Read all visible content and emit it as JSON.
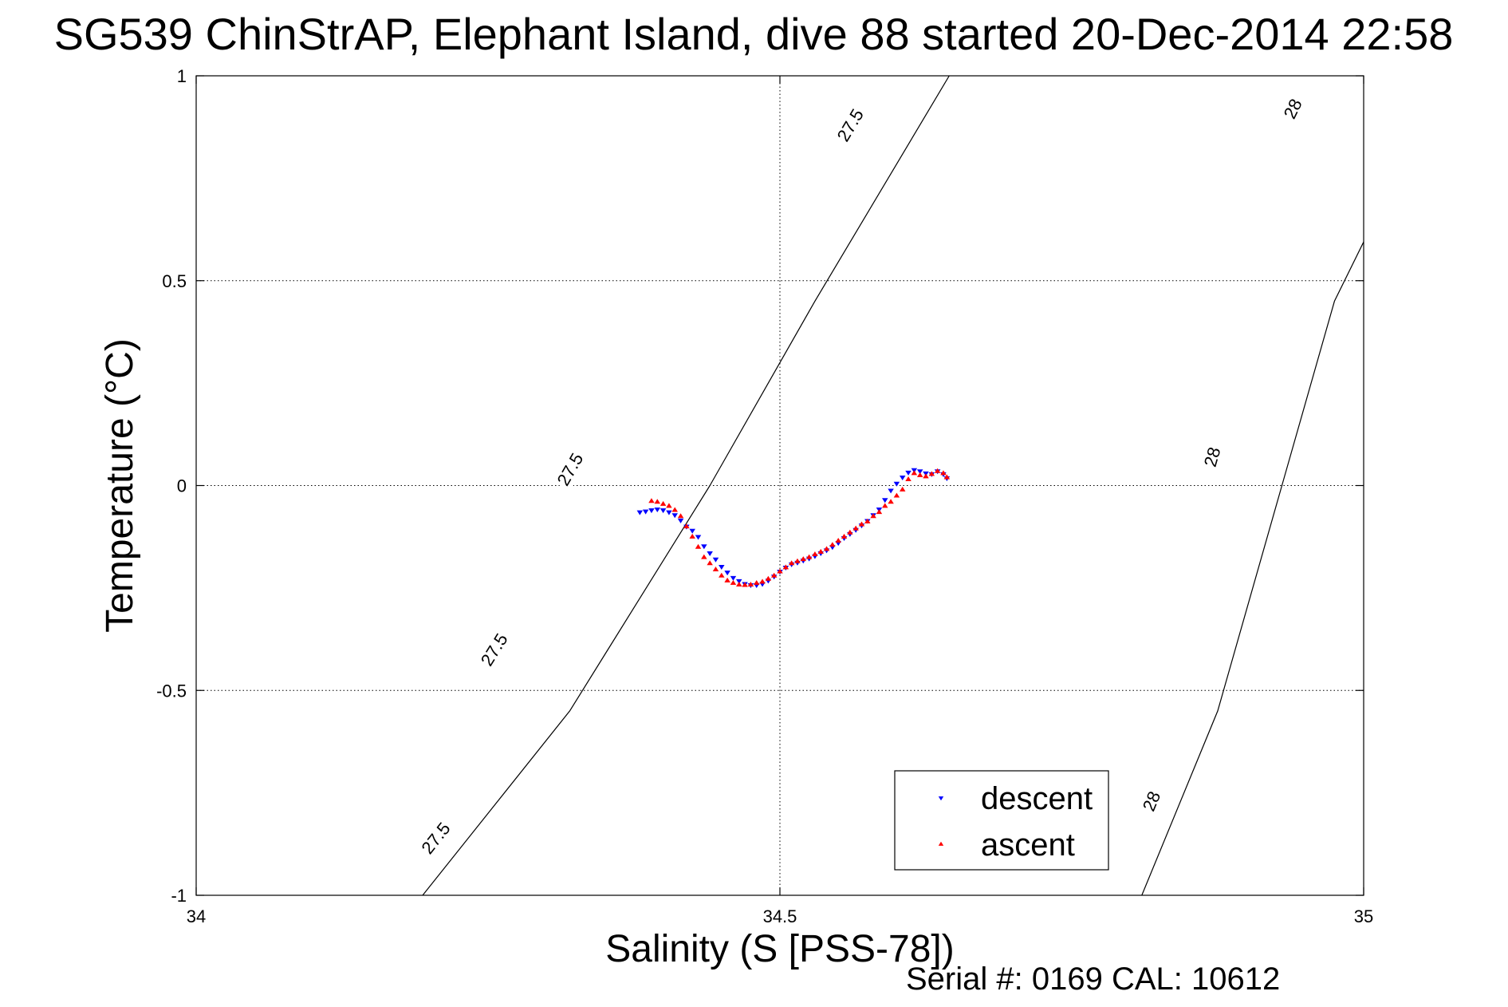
{
  "chart_data": {
    "type": "scatter",
    "title": "SG539 ChinStrAP, Elephant Island, dive 88 started 20-Dec-2014 22:58",
    "xlabel": "Salinity (S [PSS-78])",
    "ylabel": "Temperature (°C)",
    "xlim": [
      34,
      35
    ],
    "ylim": [
      -1,
      1
    ],
    "xticks": [
      34,
      34.5,
      35
    ],
    "yticks": [
      -1,
      -0.5,
      0,
      0.5,
      1
    ],
    "xtick_labels": [
      "34",
      "34.5",
      "35"
    ],
    "ytick_labels": [
      "-1",
      "-0.5",
      "0",
      "0.5",
      "1"
    ],
    "grid": true,
    "legend_position": "bottom-right",
    "footer": "Serial #: 0169 CAL: 10612",
    "density_contours": [
      {
        "label": "27.5",
        "points": [
          [
            34.194,
            -1.0
          ],
          [
            34.32,
            -0.55
          ],
          [
            34.44,
            0.0
          ],
          [
            34.53,
            0.45
          ],
          [
            34.645,
            1.0
          ]
        ],
        "label_positions": [
          [
            34.205,
            -0.86
          ],
          [
            34.255,
            -0.4
          ],
          [
            34.32,
            0.04
          ],
          [
            34.56,
            0.88
          ]
        ]
      },
      {
        "label": "28",
        "points": [
          [
            34.81,
            -1.0
          ],
          [
            34.875,
            -0.55
          ],
          [
            34.93,
            0.0
          ],
          [
            34.975,
            0.45
          ],
          [
            35.07,
            1.0
          ]
        ],
        "label_positions": [
          [
            34.818,
            -0.77
          ],
          [
            34.87,
            0.07
          ],
          [
            34.939,
            0.92
          ]
        ]
      }
    ],
    "series": [
      {
        "name": "descent",
        "color": "#0000ff",
        "marker": "triangle-down",
        "points": [
          [
            34.38,
            -0.065
          ],
          [
            34.385,
            -0.063
          ],
          [
            34.39,
            -0.06
          ],
          [
            34.395,
            -0.058
          ],
          [
            34.4,
            -0.06
          ],
          [
            34.405,
            -0.065
          ],
          [
            34.41,
            -0.072
          ],
          [
            34.415,
            -0.085
          ],
          [
            34.42,
            -0.1
          ],
          [
            34.425,
            -0.11
          ],
          [
            34.43,
            -0.125
          ],
          [
            34.435,
            -0.148
          ],
          [
            34.44,
            -0.165
          ],
          [
            34.445,
            -0.18
          ],
          [
            34.45,
            -0.198
          ],
          [
            34.455,
            -0.212
          ],
          [
            34.46,
            -0.225
          ],
          [
            34.465,
            -0.233
          ],
          [
            34.47,
            -0.24
          ],
          [
            34.475,
            -0.243
          ],
          [
            34.48,
            -0.243
          ],
          [
            34.485,
            -0.24
          ],
          [
            34.49,
            -0.232
          ],
          [
            34.495,
            -0.222
          ],
          [
            34.5,
            -0.21
          ],
          [
            34.505,
            -0.2
          ],
          [
            34.51,
            -0.192
          ],
          [
            34.515,
            -0.188
          ],
          [
            34.52,
            -0.183
          ],
          [
            34.525,
            -0.178
          ],
          [
            34.53,
            -0.172
          ],
          [
            34.535,
            -0.165
          ],
          [
            34.54,
            -0.158
          ],
          [
            34.545,
            -0.15
          ],
          [
            34.55,
            -0.14
          ],
          [
            34.555,
            -0.128
          ],
          [
            34.56,
            -0.118
          ],
          [
            34.565,
            -0.108
          ],
          [
            34.57,
            -0.097
          ],
          [
            34.575,
            -0.086
          ],
          [
            34.58,
            -0.072
          ],
          [
            34.585,
            -0.058
          ],
          [
            34.59,
            -0.035
          ],
          [
            34.595,
            -0.012
          ],
          [
            34.6,
            0.005
          ],
          [
            34.605,
            0.02
          ],
          [
            34.61,
            0.032
          ],
          [
            34.615,
            0.038
          ],
          [
            34.62,
            0.035
          ],
          [
            34.625,
            0.03
          ],
          [
            34.63,
            0.028
          ],
          [
            34.635,
            0.035
          ],
          [
            34.64,
            0.028
          ],
          [
            34.643,
            0.018
          ]
        ]
      },
      {
        "name": "ascent",
        "color": "#ff0000",
        "marker": "triangle-up",
        "points": [
          [
            34.39,
            -0.038
          ],
          [
            34.395,
            -0.04
          ],
          [
            34.4,
            -0.045
          ],
          [
            34.405,
            -0.05
          ],
          [
            34.41,
            -0.06
          ],
          [
            34.415,
            -0.075
          ],
          [
            34.42,
            -0.1
          ],
          [
            34.425,
            -0.125
          ],
          [
            34.43,
            -0.15
          ],
          [
            34.435,
            -0.175
          ],
          [
            34.44,
            -0.19
          ],
          [
            34.445,
            -0.205
          ],
          [
            34.45,
            -0.22
          ],
          [
            34.455,
            -0.232
          ],
          [
            34.46,
            -0.238
          ],
          [
            34.465,
            -0.242
          ],
          [
            34.47,
            -0.243
          ],
          [
            34.475,
            -0.242
          ],
          [
            34.48,
            -0.238
          ],
          [
            34.485,
            -0.235
          ],
          [
            34.49,
            -0.228
          ],
          [
            34.495,
            -0.22
          ],
          [
            34.5,
            -0.21
          ],
          [
            34.505,
            -0.2
          ],
          [
            34.51,
            -0.19
          ],
          [
            34.515,
            -0.185
          ],
          [
            34.52,
            -0.18
          ],
          [
            34.525,
            -0.175
          ],
          [
            34.53,
            -0.168
          ],
          [
            34.535,
            -0.162
          ],
          [
            34.54,
            -0.155
          ],
          [
            34.545,
            -0.145
          ],
          [
            34.55,
            -0.135
          ],
          [
            34.555,
            -0.125
          ],
          [
            34.56,
            -0.115
          ],
          [
            34.565,
            -0.105
          ],
          [
            34.57,
            -0.095
          ],
          [
            34.575,
            -0.088
          ],
          [
            34.58,
            -0.075
          ],
          [
            34.585,
            -0.065
          ],
          [
            34.59,
            -0.05
          ],
          [
            34.595,
            -0.04
          ],
          [
            34.6,
            -0.025
          ],
          [
            34.605,
            -0.01
          ],
          [
            34.61,
            0.015
          ],
          [
            34.615,
            0.03
          ],
          [
            34.62,
            0.025
          ],
          [
            34.625,
            0.022
          ],
          [
            34.63,
            0.028
          ],
          [
            34.635,
            0.035
          ],
          [
            34.64,
            0.03
          ],
          [
            34.643,
            0.02
          ]
        ]
      }
    ]
  }
}
